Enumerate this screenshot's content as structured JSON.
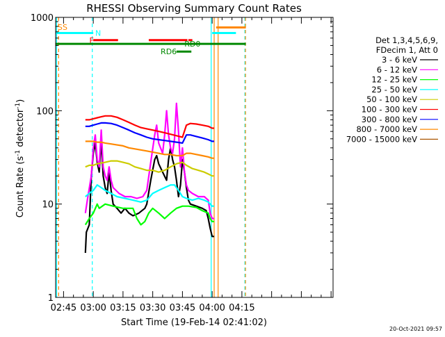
{
  "chart_data": {
    "type": "line",
    "title": "RHESSI Observing Summary Count Rates",
    "xlabel": "Start Time (19-Feb-14 02:41:02)",
    "ylabel": "Count Rate (s",
    "ylabel_sup": "-1",
    "ylabel_tail": " detector",
    "ylabel_sup2": "-1",
    "ylabel_close": ")",
    "yscale": "log",
    "ylim": [
      1,
      1000
    ],
    "xlim_minutes": [
      161,
      301
    ],
    "y_ticks": [
      {
        "v": 1,
        "label": "1"
      },
      {
        "v": 10,
        "label": "10"
      },
      {
        "v": 100,
        "label": "100"
      },
      {
        "v": 1000,
        "label": "1000"
      }
    ],
    "x_ticks": [
      {
        "m": 165,
        "label": "02:45"
      },
      {
        "m": 180,
        "label": "03:00"
      },
      {
        "m": 195,
        "label": "03:15"
      },
      {
        "m": 210,
        "label": "03:30"
      },
      {
        "m": 225,
        "label": "03:45"
      },
      {
        "m": 240,
        "label": "04:00"
      },
      {
        "m": 255,
        "label": "04:15"
      }
    ],
    "legend_header": [
      "Det 1,3,4,5,6,9,",
      "FDecim 1, Att 0"
    ],
    "series": [
      {
        "name": "3 - 6 keV",
        "color": "#000000",
        "points": [
          [
            176,
            3
          ],
          [
            176.5,
            5
          ],
          [
            178,
            6
          ],
          [
            179,
            20
          ],
          [
            180,
            35
          ],
          [
            181,
            45
          ],
          [
            182,
            28
          ],
          [
            183,
            22
          ],
          [
            184,
            48
          ],
          [
            185,
            20
          ],
          [
            186,
            15
          ],
          [
            187,
            13
          ],
          [
            188,
            22
          ],
          [
            189,
            14
          ],
          [
            190,
            10
          ],
          [
            192,
            9
          ],
          [
            194,
            8
          ],
          [
            196,
            9
          ],
          [
            198,
            8
          ],
          [
            200,
            7.5
          ],
          [
            203,
            8
          ],
          [
            206,
            9
          ],
          [
            207,
            10
          ],
          [
            209,
            18
          ],
          [
            211,
            30
          ],
          [
            212,
            33
          ],
          [
            213,
            27
          ],
          [
            215,
            22
          ],
          [
            217,
            18
          ],
          [
            218,
            30
          ],
          [
            219,
            40
          ],
          [
            220,
            30
          ],
          [
            221,
            25
          ],
          [
            222,
            18
          ],
          [
            223,
            12
          ],
          [
            224,
            16
          ],
          [
            225,
            30
          ],
          [
            226,
            22
          ],
          [
            227,
            15
          ],
          [
            228,
            11
          ],
          [
            229,
            10
          ],
          [
            232,
            9.5
          ],
          [
            235,
            9
          ],
          [
            237,
            8.5
          ],
          [
            238,
            7
          ],
          [
            239,
            5.5
          ],
          [
            240,
            4.5
          ],
          [
            241,
            4.5
          ]
        ]
      },
      {
        "name": "6 - 12 keV",
        "color": "#ff00ff",
        "points": [
          [
            176,
            8
          ],
          [
            177,
            11
          ],
          [
            179,
            20
          ],
          [
            180,
            40
          ],
          [
            181,
            55
          ],
          [
            182,
            30
          ],
          [
            183,
            25
          ],
          [
            184,
            62
          ],
          [
            185,
            25
          ],
          [
            186,
            20
          ],
          [
            187,
            18
          ],
          [
            188,
            25
          ],
          [
            189,
            18
          ],
          [
            190,
            15
          ],
          [
            193,
            13
          ],
          [
            196,
            12
          ],
          [
            199,
            12
          ],
          [
            202,
            11.5
          ],
          [
            205,
            12
          ],
          [
            207,
            14
          ],
          [
            209,
            28
          ],
          [
            211,
            55
          ],
          [
            212,
            70
          ],
          [
            213,
            45
          ],
          [
            215,
            35
          ],
          [
            216,
            55
          ],
          [
            217,
            100
          ],
          [
            218,
            55
          ],
          [
            219,
            40
          ],
          [
            220,
            35
          ],
          [
            221,
            50
          ],
          [
            222,
            120
          ],
          [
            223,
            60
          ],
          [
            224,
            25
          ],
          [
            225,
            40
          ],
          [
            226,
            22
          ],
          [
            227,
            16
          ],
          [
            228,
            14
          ],
          [
            230,
            13
          ],
          [
            233,
            12
          ],
          [
            236,
            12
          ],
          [
            238,
            11
          ],
          [
            239,
            8
          ],
          [
            240,
            7
          ],
          [
            241,
            7
          ]
        ]
      },
      {
        "name": "12 - 25 keV",
        "color": "#00ff00",
        "points": [
          [
            176,
            6
          ],
          [
            178,
            7
          ],
          [
            180,
            8
          ],
          [
            182,
            10
          ],
          [
            183,
            9
          ],
          [
            186,
            10
          ],
          [
            190,
            9.5
          ],
          [
            195,
            9
          ],
          [
            200,
            9
          ],
          [
            202,
            7
          ],
          [
            204,
            6
          ],
          [
            206,
            6.5
          ],
          [
            208,
            8
          ],
          [
            210,
            9
          ],
          [
            213,
            8
          ],
          [
            216,
            7
          ],
          [
            219,
            8
          ],
          [
            222,
            9
          ],
          [
            225,
            9.5
          ],
          [
            228,
            9.5
          ],
          [
            232,
            9.2
          ],
          [
            235,
            8.5
          ],
          [
            238,
            8
          ],
          [
            239,
            7
          ],
          [
            240,
            6.5
          ],
          [
            241,
            6.5
          ]
        ]
      },
      {
        "name": "25 - 50 keV",
        "color": "#00ffff",
        "points": [
          [
            176,
            12
          ],
          [
            178,
            13
          ],
          [
            180,
            14
          ],
          [
            182,
            16
          ],
          [
            184,
            15
          ],
          [
            186,
            14
          ],
          [
            189,
            13
          ],
          [
            192,
            12
          ],
          [
            196,
            11.5
          ],
          [
            200,
            11
          ],
          [
            204,
            10.5
          ],
          [
            207,
            11
          ],
          [
            210,
            13
          ],
          [
            213,
            14
          ],
          [
            216,
            15
          ],
          [
            219,
            16
          ],
          [
            221,
            16
          ],
          [
            223,
            14
          ],
          [
            225,
            12
          ],
          [
            227,
            11.5
          ],
          [
            230,
            11
          ],
          [
            233,
            11.5
          ],
          [
            236,
            11
          ],
          [
            238,
            10.5
          ],
          [
            239,
            10
          ],
          [
            240,
            9.5
          ],
          [
            241,
            9.5
          ]
        ]
      },
      {
        "name": "50 - 100 keV",
        "color": "#cccc00",
        "points": [
          [
            176,
            25
          ],
          [
            178,
            26
          ],
          [
            180,
            26
          ],
          [
            182,
            27
          ],
          [
            184,
            27.5
          ],
          [
            186,
            28
          ],
          [
            189,
            29
          ],
          [
            192,
            29
          ],
          [
            195,
            28
          ],
          [
            198,
            27
          ],
          [
            201,
            25
          ],
          [
            204,
            24
          ],
          [
            207,
            23
          ],
          [
            210,
            23
          ],
          [
            213,
            22
          ],
          [
            216,
            23
          ],
          [
            219,
            25
          ],
          [
            222,
            27
          ],
          [
            225,
            28
          ],
          [
            227,
            26
          ],
          [
            230,
            24
          ],
          [
            233,
            23
          ],
          [
            236,
            22
          ],
          [
            238,
            21
          ],
          [
            240,
            20
          ],
          [
            241,
            20
          ]
        ]
      },
      {
        "name": "100 - 300 keV",
        "color": "#ff0000",
        "points": [
          [
            176,
            80
          ],
          [
            178,
            80
          ],
          [
            180,
            82
          ],
          [
            182,
            84
          ],
          [
            184,
            86
          ],
          [
            186,
            88
          ],
          [
            189,
            88
          ],
          [
            192,
            85
          ],
          [
            195,
            80
          ],
          [
            198,
            75
          ],
          [
            201,
            70
          ],
          [
            204,
            66
          ],
          [
            207,
            64
          ],
          [
            210,
            62
          ],
          [
            213,
            60
          ],
          [
            216,
            58
          ],
          [
            219,
            56
          ],
          [
            222,
            54
          ],
          [
            225,
            52
          ],
          [
            227,
            70
          ],
          [
            229,
            73
          ],
          [
            232,
            72
          ],
          [
            235,
            70
          ],
          [
            238,
            68
          ],
          [
            240,
            65
          ],
          [
            241,
            65
          ]
        ]
      },
      {
        "name": "300 - 800 keV",
        "color": "#0000ff",
        "points": [
          [
            176,
            68
          ],
          [
            178,
            68
          ],
          [
            180,
            70
          ],
          [
            182,
            72
          ],
          [
            184,
            74
          ],
          [
            186,
            74
          ],
          [
            189,
            73
          ],
          [
            192,
            70
          ],
          [
            195,
            66
          ],
          [
            198,
            62
          ],
          [
            201,
            58
          ],
          [
            204,
            55
          ],
          [
            207,
            52
          ],
          [
            210,
            50
          ],
          [
            213,
            49
          ],
          [
            216,
            48
          ],
          [
            219,
            47
          ],
          [
            222,
            46
          ],
          [
            225,
            45
          ],
          [
            227,
            55
          ],
          [
            229,
            55
          ],
          [
            232,
            53
          ],
          [
            235,
            51
          ],
          [
            238,
            49
          ],
          [
            240,
            47
          ],
          [
            241,
            47
          ]
        ]
      },
      {
        "name": "800 - 7000 keV",
        "color": "#ff8800",
        "points": [
          [
            176,
            47
          ],
          [
            178,
            47
          ],
          [
            180,
            47
          ],
          [
            182,
            46
          ],
          [
            184,
            46
          ],
          [
            186,
            45
          ],
          [
            189,
            44
          ],
          [
            192,
            43
          ],
          [
            195,
            42
          ],
          [
            198,
            40
          ],
          [
            201,
            39
          ],
          [
            204,
            38
          ],
          [
            207,
            37
          ],
          [
            210,
            36
          ],
          [
            213,
            35
          ],
          [
            216,
            34
          ],
          [
            219,
            34
          ],
          [
            222,
            33
          ],
          [
            225,
            33
          ],
          [
            227,
            35
          ],
          [
            229,
            35
          ],
          [
            232,
            34
          ],
          [
            235,
            33
          ],
          [
            238,
            32
          ],
          [
            240,
            31
          ],
          [
            241,
            31
          ]
        ]
      },
      {
        "name": "7000 - 15000 keV",
        "color": "#aa5500",
        "points": []
      }
    ],
    "flag_bars": [
      {
        "label": "N",
        "color": "#00ffff",
        "y": 680,
        "x0": 161,
        "x1": 180,
        "label_at": 181
      },
      {
        "label": "",
        "color": "#00ffff",
        "y": 680,
        "x0": 240,
        "x1": 252,
        "label_at": null
      },
      {
        "label": "F",
        "color": "#ff0000",
        "y": 570,
        "x0": 180,
        "x1": 192.5,
        "label_at": 178
      },
      {
        "label": "",
        "color": "#ff0000",
        "y": 570,
        "x0": 208,
        "x1": 227.5,
        "label_at": null
      },
      {
        "label": "",
        "color": "#ff0000",
        "y": 570,
        "x0": 228,
        "x1": 230,
        "label_at": null
      },
      {
        "label": "RD6",
        "color": "#008800",
        "y": 430,
        "x0": 222,
        "x1": 229.5,
        "label_at": 214
      },
      {
        "label": "RD0",
        "color": "#008800",
        "y": 520,
        "x0": 161,
        "x1": 257,
        "label_at": 226
      },
      {
        "label": "",
        "color": "#ff8800",
        "y": 780,
        "x0": 242,
        "x1": 257,
        "label_at": null
      }
    ],
    "top_left_labels": [
      {
        "text": "S",
        "color": "#ff8800",
        "at": 162
      },
      {
        "text": "S",
        "color": "#ff8800",
        "at": 164.5
      }
    ],
    "vertical_lines": [
      {
        "m": 161.5,
        "color": "#00ffff",
        "dash": false
      },
      {
        "m": 162.5,
        "color": "#ff8800",
        "dash": true
      },
      {
        "m": 179.5,
        "color": "#00ffff",
        "dash": true
      },
      {
        "m": 239.5,
        "color": "#00ffff",
        "dash": false
      },
      {
        "m": 241.0,
        "color": "#ff8800",
        "dash": false
      },
      {
        "m": 243.0,
        "color": "#ff8800",
        "dash": false
      },
      {
        "m": 256.5,
        "color": "#00ffff",
        "dash": true
      },
      {
        "m": 256.8,
        "color": "#ff8800",
        "dash": true
      }
    ],
    "timestamp": "20-Oct-2021 09:57"
  }
}
